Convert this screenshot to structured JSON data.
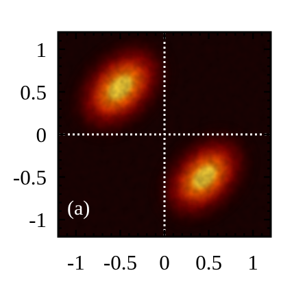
{
  "chart_data": {
    "type": "heatmap",
    "panel_label": "(a)",
    "xlim": [
      -1.2,
      1.2
    ],
    "ylim": [
      -1.2,
      1.2
    ],
    "x_ticks": [
      {
        "value": -1,
        "label": "-1"
      },
      {
        "value": -0.5,
        "label": "-0.5"
      },
      {
        "value": 0,
        "label": "0"
      },
      {
        "value": 0.5,
        "label": "0.5"
      },
      {
        "value": 1,
        "label": "1"
      }
    ],
    "y_ticks": [
      {
        "value": 1,
        "label": "1"
      },
      {
        "value": 0.5,
        "label": "0.5"
      },
      {
        "value": 0,
        "label": "0"
      },
      {
        "value": -0.5,
        "label": "-0.5"
      },
      {
        "value": -1,
        "label": "-1"
      }
    ],
    "colormap": [
      "#1a0000",
      "#5a0000",
      "#b00000",
      "#e83000",
      "#ff8000",
      "#ffe040"
    ],
    "background_color": "#1c0202",
    "reference_lines": {
      "x": 0,
      "y": 0,
      "style": "dotted",
      "color": "#ffffff"
    },
    "blobs": [
      {
        "center": [
          -0.5,
          0.55
        ],
        "peak": 1.0,
        "orientation_deg": -45
      },
      {
        "center": [
          0.45,
          -0.5
        ],
        "peak": 0.95,
        "orientation_deg": -45
      }
    ]
  }
}
